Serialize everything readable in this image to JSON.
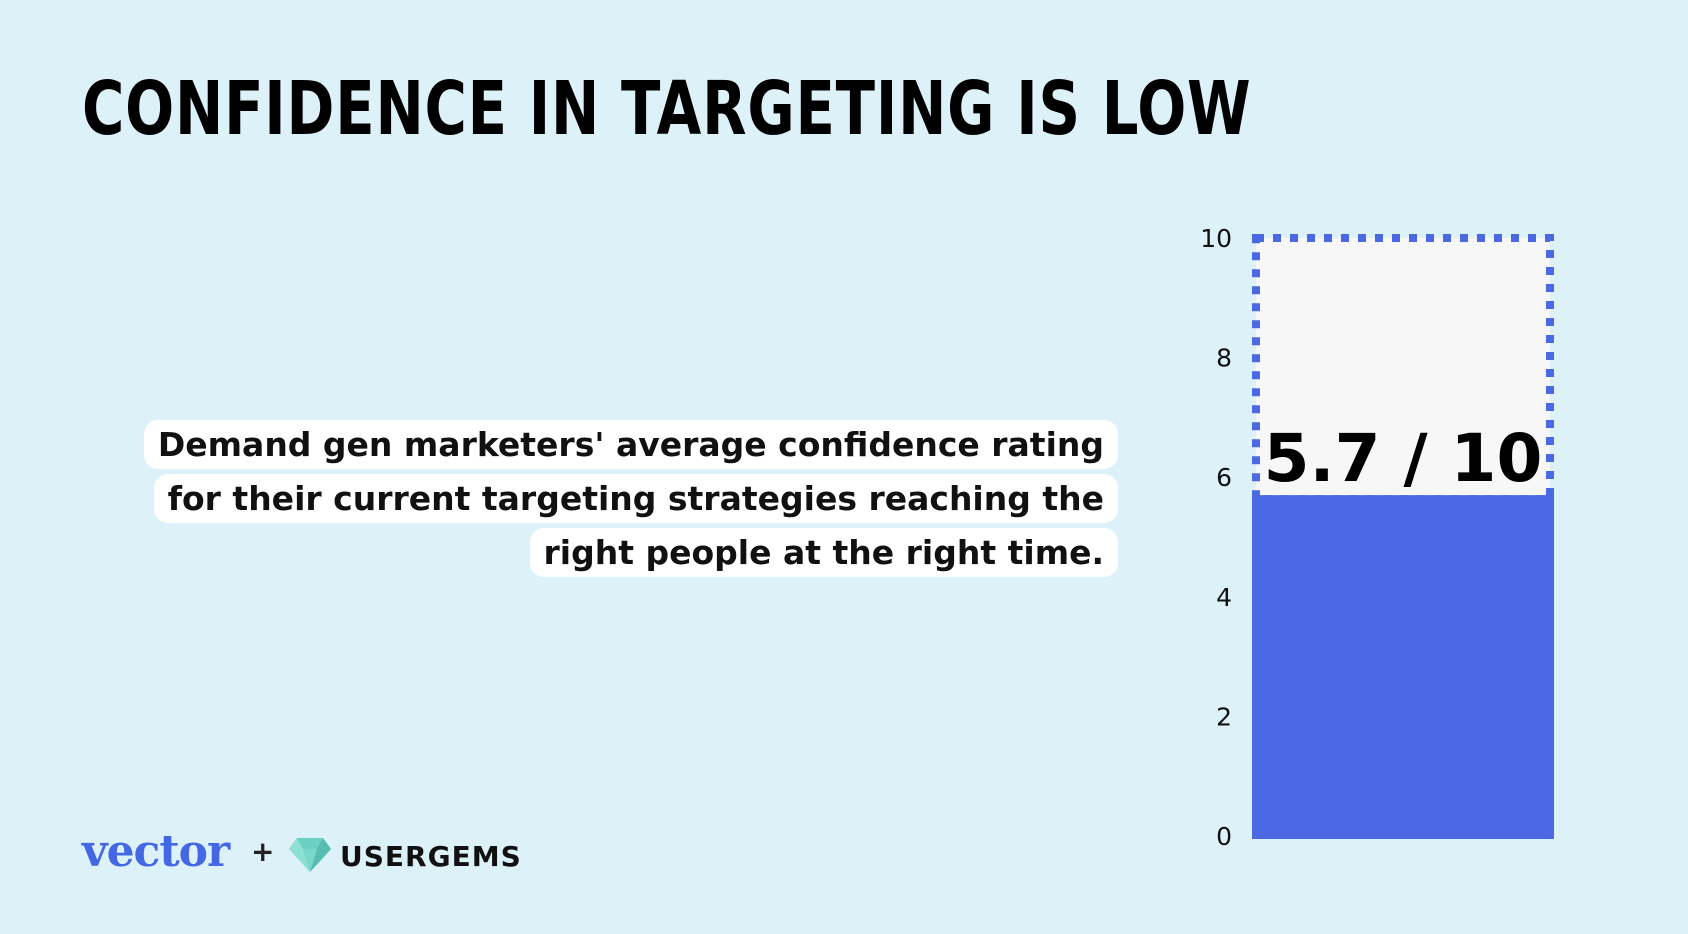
{
  "title": "CONFIDENCE IN TARGETING IS LOW",
  "description": "Demand gen marketers' average confidence rating for their current targeting strategies reaching the right people at the right time.",
  "chart_data": {
    "type": "bar",
    "categories": [
      ""
    ],
    "values": [
      5.7
    ],
    "max_value": 10,
    "ylim": [
      0,
      10
    ],
    "yticks": [
      0,
      2,
      4,
      6,
      8,
      10
    ],
    "value_label": "5.7 / 10",
    "grid": false,
    "colors": {
      "bar": "#4a69e2",
      "remainder_fill": "#f7f7f7",
      "remainder_border": "#4a69e2"
    }
  },
  "footer": {
    "brand1": "vector",
    "separator": "+",
    "brand2": "USERGEMS",
    "brand2_icon": "gem-icon",
    "colors": {
      "brand1": "#4467e4",
      "gem": "#6ccfc4"
    }
  }
}
